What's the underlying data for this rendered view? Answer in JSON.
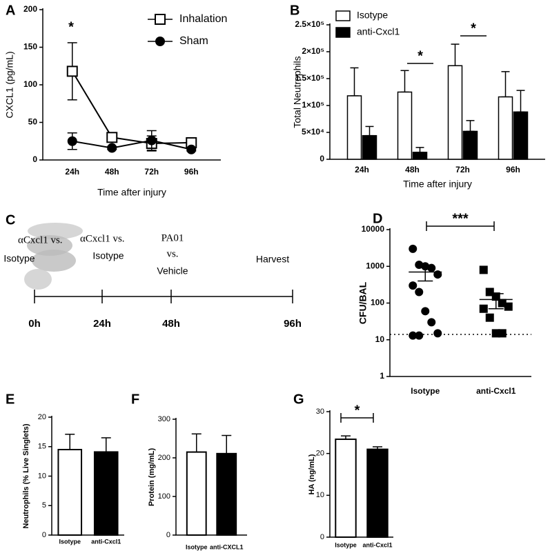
{
  "chart_data": [
    {
      "type": "line",
      "panel": "A",
      "xlabel": "Time after injury",
      "ylabel": "CXCL1 (pg/mL)",
      "categories": [
        "24h",
        "48h",
        "72h",
        "96h"
      ],
      "ylim": [
        0,
        200
      ],
      "yticks": [
        0,
        50,
        100,
        150,
        200
      ],
      "series": [
        {
          "name": "Inhalation",
          "color": "#000000",
          "marker": "square",
          "filled": false,
          "values": [
            118,
            30,
            22,
            23
          ],
          "errors": [
            38,
            3,
            10,
            3
          ]
        },
        {
          "name": "Sham",
          "color": "#000000",
          "marker": "circle",
          "filled": true,
          "values": [
            25,
            16,
            26,
            14
          ],
          "errors": [
            11,
            2,
            13,
            2
          ]
        }
      ],
      "annotations": [
        "*"
      ]
    },
    {
      "type": "bar",
      "panel": "B",
      "xlabel": "Time after injury",
      "ylabel": "Total Neutrophils",
      "categories": [
        "24h",
        "48h",
        "72h",
        "96h"
      ],
      "ylim": [
        0,
        250000
      ],
      "yticks": [
        0,
        {
          "value": 50000,
          "label": "5×10⁴"
        },
        {
          "value": 100000,
          "label": "1×10⁵"
        },
        {
          "value": 150000,
          "label": "1.5×10⁵"
        },
        {
          "value": 200000,
          "label": "2×10⁵"
        },
        {
          "value": 250000,
          "label": "2.5×10⁵"
        }
      ],
      "series": [
        {
          "name": "Isotype",
          "color": "#ffffff",
          "values": [
            118000,
            125000,
            174000,
            116000
          ],
          "errors": [
            52000,
            40000,
            40000,
            47000
          ]
        },
        {
          "name": "anti-Cxcl1",
          "color": "#000000",
          "values": [
            44000,
            13000,
            52000,
            88000
          ],
          "errors": [
            17000,
            9000,
            20000,
            40000
          ]
        }
      ],
      "annotations": [
        "*",
        "*"
      ]
    },
    {
      "type": "timeline",
      "panel": "C",
      "events": [
        [
          "αCxcl1 vs.",
          "Isotype"
        ],
        [
          "αCxcl1 vs.",
          "Isotype"
        ],
        [
          "PA01",
          "vs.",
          "Vehicle"
        ],
        [
          "Harvest"
        ]
      ],
      "times": [
        "0h",
        "24h",
        "48h",
        "96h"
      ]
    },
    {
      "type": "scatter",
      "panel": "D",
      "ylabel": "CFU/BAL",
      "log_y": true,
      "ylim": [
        1,
        10000
      ],
      "yticks": [
        1,
        10,
        100,
        1000,
        10000
      ],
      "reference_line": 14,
      "groups": [
        {
          "name": "Isotype",
          "marker": "circle",
          "values": [
            3000,
            1100,
            1000,
            900,
            600,
            300,
            200,
            60,
            30,
            15,
            13,
            13
          ],
          "mean": 700,
          "sem": 300
        },
        {
          "name": "anti-Cxcl1",
          "marker": "square",
          "values": [
            800,
            200,
            150,
            100,
            80,
            70,
            40,
            15,
            15
          ],
          "mean": 125,
          "sem": 55
        }
      ],
      "annotations": [
        "***"
      ]
    },
    {
      "type": "bar",
      "panel": "E",
      "ylabel": "Neutrophils (% Live Singlets)",
      "categories": [
        "Isotype",
        "anti-Cxcl1"
      ],
      "ylim": [
        0,
        20
      ],
      "yticks": [
        0,
        5,
        10,
        15,
        20
      ],
      "values": [
        14.5,
        14.1
      ],
      "errors": [
        2.6,
        2.4
      ],
      "colors": [
        "#ffffff",
        "#000000"
      ],
      "annotations": []
    },
    {
      "type": "bar",
      "panel": "F",
      "ylabel": "Protein (mg/mL)",
      "categories": [
        "Isotype",
        "anti-CXCL1"
      ],
      "ylim": [
        0,
        300
      ],
      "yticks": [
        0,
        100,
        200,
        300
      ],
      "values": [
        215,
        211
      ],
      "errors": [
        47,
        47
      ],
      "colors": [
        "#ffffff",
        "#000000"
      ],
      "annotations": []
    },
    {
      "type": "bar",
      "panel": "G",
      "ylabel": "HA (ng/mL)",
      "categories": [
        "Isotype",
        "anti-Cxcl1"
      ],
      "ylim": [
        0,
        30
      ],
      "yticks": [
        0,
        10,
        20,
        30
      ],
      "values": [
        23.4,
        21
      ],
      "errors": [
        0.8,
        0.6
      ],
      "colors": [
        "#ffffff",
        "#000000"
      ],
      "annotations": [
        "*"
      ]
    }
  ]
}
